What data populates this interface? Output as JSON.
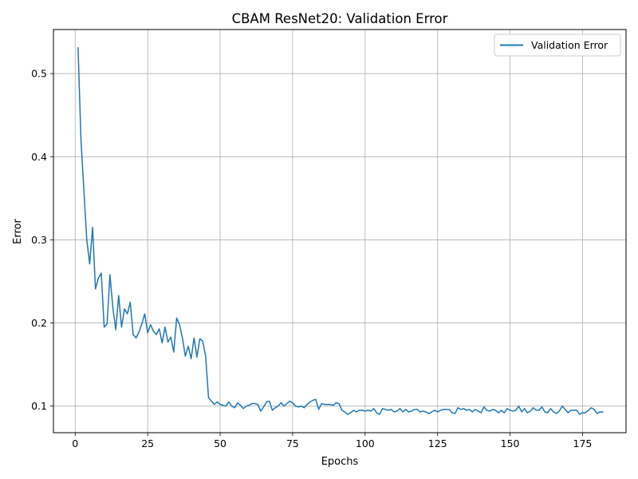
{
  "chart_data": {
    "type": "line",
    "title": "CBAM ResNet20: Validation Error",
    "xlabel": "Epochs",
    "ylabel": "Error",
    "xlim": [
      -7.5,
      190
    ],
    "ylim": [
      0.068,
      0.553
    ],
    "xticks": [
      0,
      25,
      50,
      75,
      100,
      125,
      150,
      175
    ],
    "yticks": [
      0.1,
      0.2,
      0.3,
      0.4,
      0.5
    ],
    "grid": true,
    "legend_position": "top-right",
    "series": [
      {
        "name": "Validation Error",
        "color": "#1f77b4",
        "x": [
          1,
          2,
          3,
          4,
          5,
          6,
          7,
          8,
          9,
          10,
          11,
          12,
          13,
          14,
          15,
          16,
          17,
          18,
          19,
          20,
          21,
          22,
          23,
          24,
          25,
          26,
          27,
          28,
          29,
          30,
          31,
          32,
          33,
          34,
          35,
          36,
          37,
          38,
          39,
          40,
          41,
          42,
          43,
          44,
          45,
          46,
          47,
          48,
          49,
          50,
          51,
          52,
          53,
          54,
          55,
          56,
          57,
          58,
          59,
          60,
          61,
          62,
          63,
          64,
          65,
          66,
          67,
          68,
          69,
          70,
          71,
          72,
          73,
          74,
          75,
          76,
          77,
          78,
          79,
          80,
          81,
          82,
          83,
          84,
          85,
          86,
          87,
          88,
          89,
          90,
          91,
          92,
          93,
          94,
          95,
          96,
          97,
          98,
          99,
          100,
          101,
          102,
          103,
          104,
          105,
          106,
          107,
          108,
          109,
          110,
          111,
          112,
          113,
          114,
          115,
          116,
          117,
          118,
          119,
          120,
          121,
          122,
          123,
          124,
          125,
          126,
          127,
          128,
          129,
          130,
          131,
          132,
          133,
          134,
          135,
          136,
          137,
          138,
          139,
          140,
          141,
          142,
          143,
          144,
          145,
          146,
          147,
          148,
          149,
          150,
          151,
          152,
          153,
          154,
          155,
          156,
          157,
          158,
          159,
          160,
          161,
          162,
          163,
          164,
          165,
          166,
          167,
          168,
          169,
          170,
          171,
          172,
          173,
          174,
          175,
          176,
          177,
          178,
          179,
          180,
          181,
          182
        ],
        "y": [
          0.531,
          0.42,
          0.36,
          0.3,
          0.271,
          0.315,
          0.241,
          0.254,
          0.26,
          0.195,
          0.199,
          0.258,
          0.218,
          0.192,
          0.233,
          0.195,
          0.217,
          0.211,
          0.225,
          0.186,
          0.182,
          0.189,
          0.199,
          0.211,
          0.188,
          0.198,
          0.19,
          0.186,
          0.193,
          0.176,
          0.195,
          0.177,
          0.183,
          0.165,
          0.206,
          0.198,
          0.182,
          0.16,
          0.172,
          0.157,
          0.182,
          0.159,
          0.181,
          0.178,
          0.16,
          0.11,
          0.106,
          0.102,
          0.105,
          0.102,
          0.101,
          0.1,
          0.105,
          0.1,
          0.098,
          0.104,
          0.101,
          0.097,
          0.1,
          0.101,
          0.103,
          0.103,
          0.102,
          0.094,
          0.099,
          0.105,
          0.106,
          0.095,
          0.098,
          0.1,
          0.104,
          0.1,
          0.103,
          0.106,
          0.104,
          0.1,
          0.099,
          0.1,
          0.098,
          0.102,
          0.105,
          0.107,
          0.108,
          0.096,
          0.103,
          0.102,
          0.102,
          0.102,
          0.101,
          0.104,
          0.103,
          0.095,
          0.093,
          0.09,
          0.092,
          0.095,
          0.093,
          0.095,
          0.095,
          0.094,
          0.095,
          0.094,
          0.097,
          0.092,
          0.09,
          0.097,
          0.096,
          0.095,
          0.096,
          0.093,
          0.094,
          0.097,
          0.093,
          0.096,
          0.093,
          0.094,
          0.096,
          0.096,
          0.093,
          0.094,
          0.093,
          0.091,
          0.093,
          0.095,
          0.093,
          0.095,
          0.096,
          0.096,
          0.096,
          0.092,
          0.091,
          0.098,
          0.096,
          0.097,
          0.095,
          0.096,
          0.093,
          0.096,
          0.094,
          0.092,
          0.099,
          0.095,
          0.094,
          0.096,
          0.095,
          0.092,
          0.095,
          0.092,
          0.097,
          0.095,
          0.094,
          0.095,
          0.1,
          0.093,
          0.097,
          0.092,
          0.094,
          0.098,
          0.095,
          0.095,
          0.099,
          0.093,
          0.092,
          0.097,
          0.093,
          0.091,
          0.094,
          0.1,
          0.096,
          0.092,
          0.095,
          0.095,
          0.095,
          0.09,
          0.092,
          0.092,
          0.095,
          0.098,
          0.096,
          0.091,
          0.093,
          0.093
        ]
      }
    ]
  }
}
